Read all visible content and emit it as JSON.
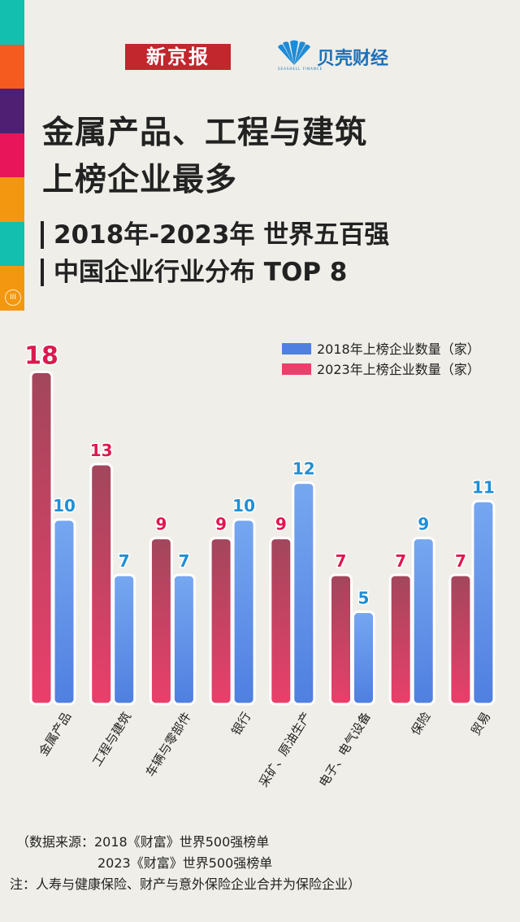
{
  "header": {
    "logo_left": "新京报",
    "logo_right": "贝壳财经",
    "logo_right_sub": "SEASHELL FINANCE",
    "strip_badge": "III"
  },
  "title": {
    "line1": "金属产品、工程与建筑",
    "line2": "上榜企业最多"
  },
  "subtitle": {
    "line1": "2018年-2023年 世界五百强",
    "line2": "中国企业行业分布 TOP 8"
  },
  "colors": {
    "strip": [
      "#13bfae",
      "#f55a1e",
      "#4e1f73",
      "#e8155a",
      "#f2970f",
      "#13bfae",
      "#f2970f"
    ],
    "series_2018_top": "#76a7f0",
    "series_2018_bottom": "#4f7fe0",
    "series_2023_top": "#a2465b",
    "series_2023_bottom": "#ea3f6b",
    "label_2018": "#1f8fd6",
    "label_2023": "#e0174f"
  },
  "chart_data": {
    "type": "bar",
    "categories": [
      "金属产品",
      "工程与建筑",
      "车辆与零部件",
      "银行",
      "采矿、原油生产",
      "电子、电气设备",
      "保险",
      "贸易"
    ],
    "category_labels": [
      "金属产品",
      "工程与建筑",
      "车辆与零部件",
      "银行",
      "采矿、原油生产",
      "电子、电气设备",
      "保险",
      "贸易"
    ],
    "series": [
      {
        "name": "2023年上榜企业数量（家）",
        "values": [
          18,
          13,
          9,
          9,
          9,
          7,
          7,
          7
        ]
      },
      {
        "name": "2018年上榜企业数量（家）",
        "values": [
          10,
          7,
          7,
          10,
          12,
          5,
          9,
          11
        ]
      }
    ],
    "legend": [
      "2018年上榜企业数量（家）",
      "2023年上榜企业数量（家）"
    ],
    "ylim": [
      0,
      18
    ],
    "title": "",
    "xlabel": "",
    "ylabel": ""
  },
  "notes": {
    "source_line1": "（数据来源：2018《财富》世界500强榜单",
    "source_line2": "2023《财富》世界500强榜单",
    "note": "注：人寿与健康保险、财产与意外保险企业合并为保险企业）"
  }
}
